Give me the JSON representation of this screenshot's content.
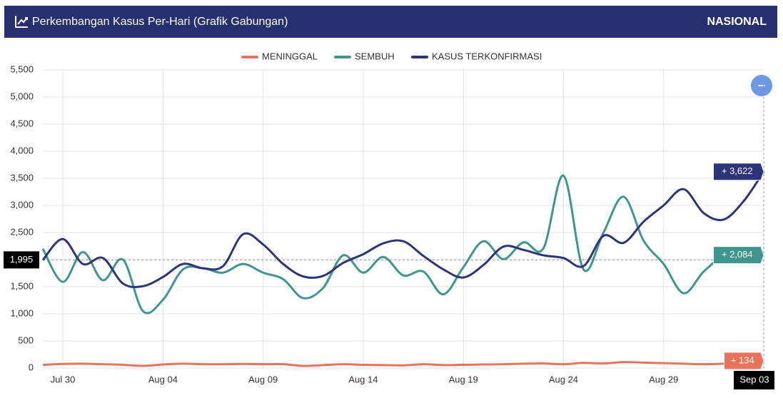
{
  "chart_data": {
    "type": "line",
    "title": "Perkembangan Kasus Per-Hari (Grafik Gabungan)",
    "scope": "NASIONAL",
    "categories": [
      null,
      "Jul 30",
      null,
      null,
      null,
      null,
      "Aug 04",
      null,
      null,
      null,
      null,
      "Aug 09",
      null,
      null,
      null,
      null,
      "Aug 14",
      null,
      null,
      null,
      null,
      "Aug 19",
      null,
      null,
      null,
      null,
      "Aug 24",
      null,
      null,
      null,
      null,
      "Aug 29",
      null,
      null,
      null,
      null,
      "Sep 03"
    ],
    "series": [
      {
        "name": "MENINGGAL",
        "color": "#e8735a",
        "values": [
          60,
          75,
          80,
          70,
          60,
          40,
          65,
          80,
          70,
          70,
          75,
          70,
          70,
          40,
          55,
          70,
          60,
          55,
          50,
          70,
          55,
          60,
          65,
          70,
          80,
          85,
          70,
          95,
          85,
          110,
          100,
          90,
          80,
          70,
          80,
          100,
          134
        ],
        "value_labels": [
          null,
          null,
          null,
          null,
          null,
          null,
          null,
          null,
          null,
          null,
          null,
          null,
          null,
          null,
          null,
          null,
          null,
          null,
          null,
          null,
          null,
          null,
          null,
          null,
          null,
          null,
          null,
          null,
          null,
          null,
          null,
          null,
          null,
          null,
          null,
          null,
          "+ 134"
        ]
      },
      {
        "name": "SEMBUH",
        "color": "#3f968f",
        "values": [
          2200,
          1590,
          2140,
          1620,
          2000,
          1050,
          1260,
          1820,
          1840,
          1760,
          1920,
          1760,
          1640,
          1290,
          1480,
          2080,
          1760,
          2050,
          1710,
          1780,
          1360,
          1860,
          2340,
          2010,
          2320,
          2210,
          3550,
          1820,
          2500,
          3160,
          2350,
          1920,
          1380,
          1780,
          2050,
          1960,
          2084
        ],
        "value_labels": [
          null,
          null,
          null,
          null,
          null,
          null,
          null,
          null,
          null,
          null,
          null,
          null,
          null,
          null,
          null,
          null,
          null,
          null,
          null,
          null,
          null,
          null,
          null,
          null,
          null,
          null,
          null,
          null,
          null,
          null,
          null,
          null,
          null,
          null,
          null,
          null,
          "+ 2,084"
        ]
      },
      {
        "name": "KASUS TERKONFIRMASI",
        "color": "#2e3479",
        "values": [
          1990,
          2380,
          1920,
          2030,
          1560,
          1510,
          1680,
          1920,
          1840,
          1880,
          2470,
          2280,
          1920,
          1690,
          1700,
          1940,
          2100,
          2300,
          2340,
          2070,
          1820,
          1670,
          1900,
          2240,
          2180,
          2080,
          2030,
          1880,
          2440,
          2310,
          2700,
          3000,
          3300,
          2860,
          2740,
          3080,
          3622
        ],
        "value_labels": [
          null,
          null,
          null,
          null,
          null,
          null,
          null,
          null,
          null,
          null,
          null,
          null,
          null,
          null,
          null,
          null,
          null,
          null,
          null,
          null,
          null,
          null,
          null,
          null,
          null,
          null,
          null,
          null,
          null,
          null,
          null,
          null,
          null,
          null,
          null,
          null,
          "+ 3,622"
        ]
      }
    ],
    "ylim": [
      0,
      5500
    ],
    "yticks": [
      0,
      500,
      {
        "value": 1000,
        "label": "1,000"
      },
      {
        "value": 1500,
        "label": "1,500"
      },
      {
        "value": 2000,
        "label": "2,000"
      },
      {
        "value": 2500,
        "label": "2,500"
      },
      {
        "value": 3000,
        "label": "3,000"
      },
      {
        "value": 3500,
        "label": "3,500"
      },
      {
        "value": 4000,
        "label": "4,000"
      },
      {
        "value": 4500,
        "label": "4,500"
      },
      {
        "value": 5000,
        "label": "5,000"
      },
      {
        "value": 5500,
        "label": "5,500"
      }
    ],
    "crosshair": {
      "value": 1995,
      "label": "1,995"
    },
    "grid": true
  }
}
